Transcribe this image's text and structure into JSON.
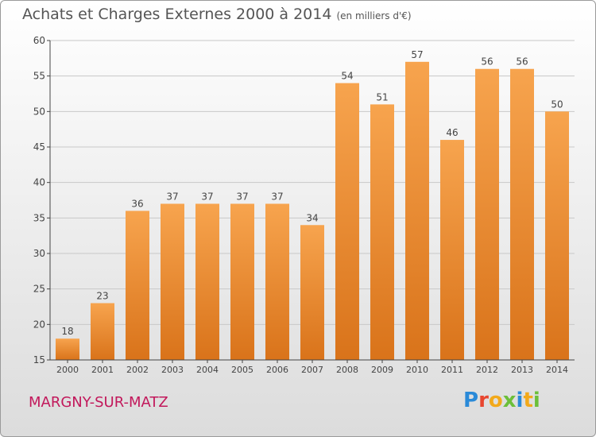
{
  "header": {
    "title": "Achats et Charges Externes 2000 à 2014",
    "unit": "(en milliers d'€)"
  },
  "footer": {
    "city": "MARGNY-SUR-MATZ",
    "logo": "Proxiti"
  },
  "colors": {
    "bar_light": "#f7a44e",
    "bar_dark": "#d9731a",
    "grid": "#c8c8c8",
    "city_text": "#c2185b"
  },
  "chart_data": {
    "type": "bar",
    "title": "Achats et Charges Externes 2000 à 2014",
    "subtitle": "(en milliers d'€)",
    "categories": [
      "2000",
      "2001",
      "2002",
      "2003",
      "2004",
      "2005",
      "2006",
      "2007",
      "2008",
      "2009",
      "2010",
      "2011",
      "2012",
      "2013",
      "2014"
    ],
    "values": [
      18,
      23,
      36,
      37,
      37,
      37,
      37,
      34,
      54,
      51,
      57,
      46,
      56,
      56,
      50
    ],
    "ylim": [
      15,
      60
    ],
    "yticks": [
      15,
      20,
      25,
      30,
      35,
      40,
      45,
      50,
      55,
      60
    ],
    "grid": true,
    "xlabel": "",
    "ylabel": ""
  }
}
